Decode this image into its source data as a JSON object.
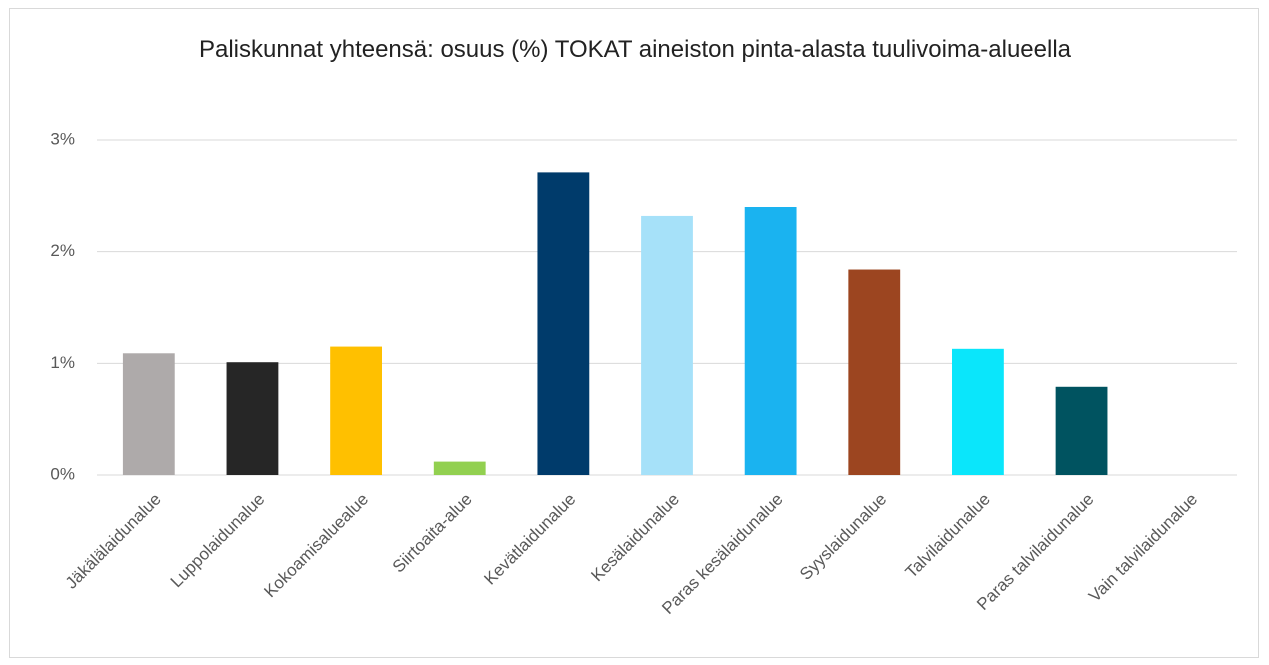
{
  "chart_data": {
    "type": "bar",
    "title": "Paliskunnat yhteensä: osuus (%) TOKAT aineiston pinta-alasta tuulivoima-alueella",
    "categories": [
      "Jäkälälaidunalue",
      "Luppolaidunalue",
      "Kokoamisaluealue",
      "Siirtoaita-alue",
      "Kevätlaidunalue",
      "Kesälaidunalue",
      "Paras kesälaidunalue",
      "Syyslaidunalue",
      "Talvilaidunalue",
      "Paras talvilaidunalue",
      "Vain talvilaidunalue"
    ],
    "values": [
      1.09,
      1.01,
      1.15,
      0.12,
      2.71,
      2.32,
      2.4,
      1.84,
      1.13,
      0.79,
      0
    ],
    "colors": [
      "#aeaaaa",
      "#262626",
      "#ffc000",
      "#92d050",
      "#003b6b",
      "#a6e1f9",
      "#1ab3f0",
      "#9c4520",
      "#0ae6fb",
      "#005360",
      "#7f7f7f"
    ],
    "ylim": [
      0,
      3
    ],
    "yticks": [
      {
        "value": 0,
        "label": "0%"
      },
      {
        "value": 1,
        "label": "1%"
      },
      {
        "value": 2,
        "label": "2%"
      },
      {
        "value": 3,
        "label": "3%"
      }
    ],
    "grid": true
  }
}
